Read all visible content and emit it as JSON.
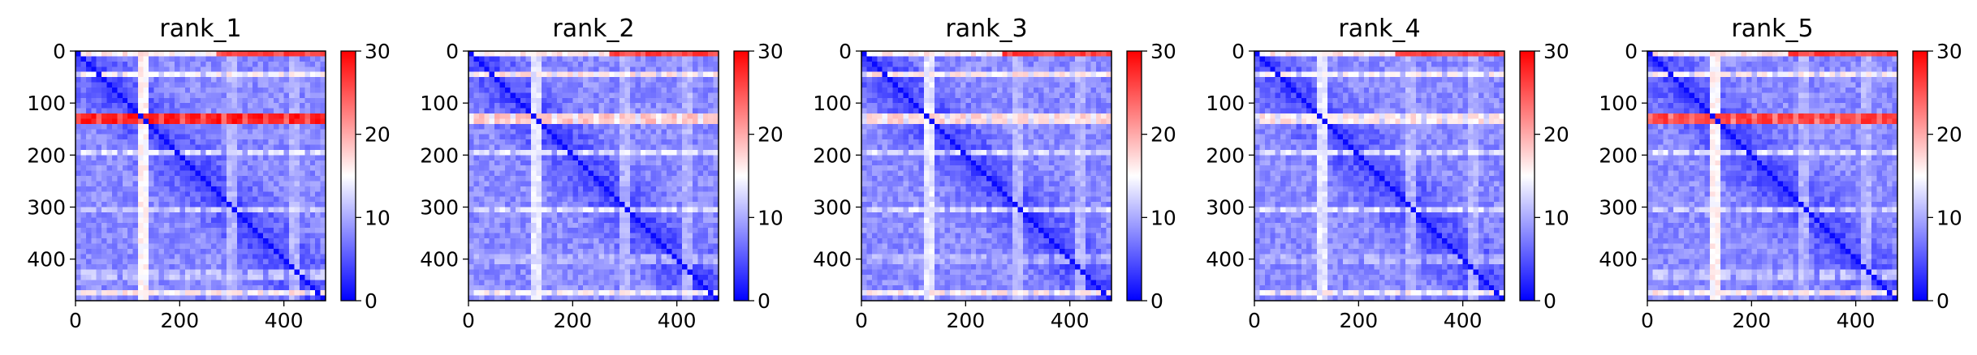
{
  "chart_data": [
    {
      "type": "heatmap",
      "title": "rank_1",
      "xlabel": "",
      "ylabel": "",
      "xlim": [
        0,
        480
      ],
      "ylim": [
        480,
        0
      ],
      "x_ticks": [
        "0",
        "200",
        "400"
      ],
      "y_ticks": [
        "0",
        "100",
        "200",
        "300",
        "400"
      ],
      "colorbar": {
        "min": 0,
        "max": 30,
        "ticks": [
          "0",
          "10",
          "20",
          "30"
        ],
        "colormap": "bwr"
      },
      "bright_rows": [
        {
          "pos": 130,
          "value": 30
        },
        {
          "pos": 48,
          "value": 17
        },
        {
          "pos": 195,
          "value": 15
        },
        {
          "pos": 305,
          "value": 14
        },
        {
          "pos": 430,
          "value": 13
        },
        {
          "pos": 465,
          "value": 18
        }
      ],
      "bright_cols": [
        {
          "pos": 130,
          "value": 17
        },
        {
          "pos": 300,
          "value": 12
        },
        {
          "pos": 420,
          "value": 12
        }
      ]
    },
    {
      "type": "heatmap",
      "title": "rank_2",
      "xlabel": "",
      "ylabel": "",
      "xlim": [
        0,
        480
      ],
      "ylim": [
        480,
        0
      ],
      "x_ticks": [
        "0",
        "200",
        "400"
      ],
      "y_ticks": [
        "0",
        "100",
        "200",
        "300",
        "400"
      ],
      "colorbar": {
        "min": 0,
        "max": 30,
        "ticks": [
          "0",
          "10",
          "20",
          "30"
        ],
        "colormap": "bwr"
      },
      "bright_rows": [
        {
          "pos": 130,
          "value": 20
        },
        {
          "pos": 48,
          "value": 18
        },
        {
          "pos": 195,
          "value": 15
        },
        {
          "pos": 305,
          "value": 15
        },
        {
          "pos": 400,
          "value": 12
        },
        {
          "pos": 465,
          "value": 17
        }
      ],
      "bright_cols": [
        {
          "pos": 130,
          "value": 15
        },
        {
          "pos": 300,
          "value": 12
        },
        {
          "pos": 420,
          "value": 12
        }
      ]
    },
    {
      "type": "heatmap",
      "title": "rank_3",
      "xlabel": "",
      "ylabel": "",
      "xlim": [
        0,
        480
      ],
      "ylim": [
        480,
        0
      ],
      "x_ticks": [
        "0",
        "200",
        "400"
      ],
      "y_ticks": [
        "0",
        "100",
        "200",
        "300",
        "400"
      ],
      "colorbar": {
        "min": 0,
        "max": 30,
        "ticks": [
          "0",
          "10",
          "20",
          "30"
        ],
        "colormap": "bwr"
      },
      "bright_rows": [
        {
          "pos": 130,
          "value": 19
        },
        {
          "pos": 48,
          "value": 18
        },
        {
          "pos": 195,
          "value": 15
        },
        {
          "pos": 305,
          "value": 15
        },
        {
          "pos": 400,
          "value": 12
        },
        {
          "pos": 465,
          "value": 18
        }
      ],
      "bright_cols": [
        {
          "pos": 130,
          "value": 15
        },
        {
          "pos": 300,
          "value": 12
        },
        {
          "pos": 420,
          "value": 12
        }
      ]
    },
    {
      "type": "heatmap",
      "title": "rank_4",
      "xlabel": "",
      "ylabel": "",
      "xlim": [
        0,
        480
      ],
      "ylim": [
        480,
        0
      ],
      "x_ticks": [
        "0",
        "200",
        "400"
      ],
      "y_ticks": [
        "0",
        "100",
        "200",
        "300",
        "400"
      ],
      "colorbar": {
        "min": 0,
        "max": 30,
        "ticks": [
          "0",
          "10",
          "20",
          "30"
        ],
        "colormap": "bwr"
      },
      "bright_rows": [
        {
          "pos": 130,
          "value": 18
        },
        {
          "pos": 48,
          "value": 17
        },
        {
          "pos": 195,
          "value": 15
        },
        {
          "pos": 305,
          "value": 15
        },
        {
          "pos": 400,
          "value": 12
        },
        {
          "pos": 465,
          "value": 17
        }
      ],
      "bright_cols": [
        {
          "pos": 130,
          "value": 15
        },
        {
          "pos": 300,
          "value": 12
        },
        {
          "pos": 420,
          "value": 12
        }
      ]
    },
    {
      "type": "heatmap",
      "title": "rank_5",
      "xlabel": "",
      "ylabel": "",
      "xlim": [
        0,
        480
      ],
      "ylim": [
        480,
        0
      ],
      "x_ticks": [
        "0",
        "200",
        "400"
      ],
      "y_ticks": [
        "0",
        "100",
        "200",
        "300",
        "400"
      ],
      "colorbar": {
        "min": 0,
        "max": 30,
        "ticks": [
          "0",
          "10",
          "20",
          "30"
        ],
        "colormap": "bwr"
      },
      "bright_rows": [
        {
          "pos": 130,
          "value": 28
        },
        {
          "pos": 48,
          "value": 17
        },
        {
          "pos": 195,
          "value": 15
        },
        {
          "pos": 305,
          "value": 14
        },
        {
          "pos": 430,
          "value": 13
        },
        {
          "pos": 465,
          "value": 18
        }
      ],
      "bright_cols": [
        {
          "pos": 130,
          "value": 17
        },
        {
          "pos": 300,
          "value": 12
        },
        {
          "pos": 420,
          "value": 12
        }
      ]
    }
  ]
}
